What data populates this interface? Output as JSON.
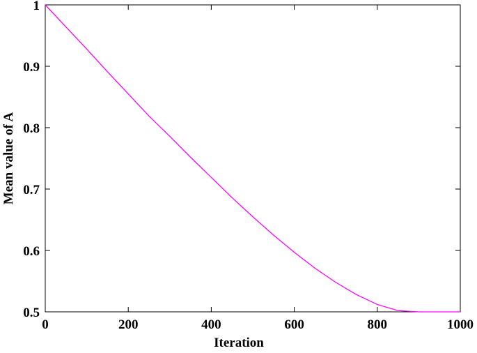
{
  "chart_data": {
    "type": "line",
    "x_label": "Iteration",
    "y_label": "Mean value of A",
    "x": [
      0,
      50,
      100,
      150,
      200,
      250,
      300,
      350,
      400,
      450,
      500,
      550,
      600,
      650,
      700,
      750,
      800,
      850,
      900,
      950,
      1000
    ],
    "series": [
      {
        "color": "#ff00ff",
        "values": [
          1.0,
          0.964,
          0.928,
          0.891,
          0.855,
          0.819,
          0.786,
          0.752,
          0.719,
          0.686,
          0.655,
          0.625,
          0.597,
          0.571,
          0.548,
          0.528,
          0.512,
          0.502,
          0.5,
          0.5,
          0.5
        ]
      }
    ],
    "xlim": [
      0,
      1000
    ],
    "xticks": [
      0,
      200,
      400,
      600,
      800,
      1000
    ],
    "ylim": [
      0.5,
      1
    ],
    "yticks": [
      0.5,
      0.6,
      0.7,
      0.8,
      0.9,
      1
    ],
    "grid": false
  }
}
